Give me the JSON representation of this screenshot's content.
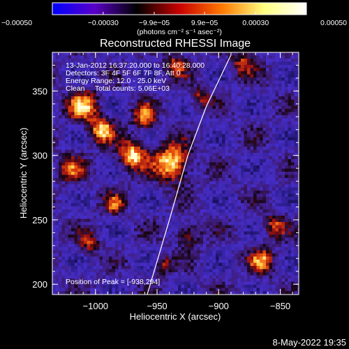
{
  "chart_data": {
    "type": "heatmap",
    "title": "Reconstructed RHESSI Image",
    "xlabel": "Heliocentric X (arcsec)",
    "ylabel": "Heliocentric Y (arcsec)",
    "xlim": [
      -1035,
      -835
    ],
    "ylim": [
      192,
      380
    ],
    "x_ticks": [
      -1000,
      -950,
      -900,
      -850
    ],
    "x_tick_labels": [
      "−1000",
      "−950",
      "−900",
      "−850"
    ],
    "y_ticks": [
      200,
      250,
      300,
      350
    ],
    "y_tick_labels": [
      "200",
      "250",
      "300",
      "350"
    ],
    "colorbar": {
      "range": [
        -0.0005,
        0.0005
      ],
      "ticks": [
        -0.0005,
        -0.0003,
        -9.9e-05,
        9.9e-05,
        0.0003,
        0.0005
      ],
      "tick_labels": [
        "−0.00050",
        "−0.00030",
        "−9.9e−05",
        "9.9e−05",
        "0.00030",
        "0.00050"
      ],
      "units_label": "(photons cm⁻² s⁻¹ asec⁻²)",
      "colors": [
        "#0000ff",
        "#5a00c8",
        "#000000",
        "#c80000",
        "#ff7800",
        "#ffff80",
        "#ffffff"
      ]
    },
    "annotations": {
      "time_range": "13-Jan-2012 16:37:20.000 to 16:40:28.000",
      "detectors": "Detectors: 3F 4F 5F 6F 7F 8F, Att 0",
      "energy": "Energy Range: 12.0 - 25.0 keV",
      "clean": "Clean     Total counts: 5.06E+03",
      "peak": "Position of Peak = [-938,294]"
    },
    "peak": {
      "x": -938,
      "y": 294
    },
    "limb_curve": [
      [
        -958,
        192
      ],
      [
        -940,
        250
      ],
      [
        -925,
        300
      ],
      [
        -910,
        338
      ],
      [
        -898,
        362
      ],
      [
        -890,
        378
      ]
    ],
    "grid": false
  },
  "footer": {
    "timestamp": "8-May-2022 19:35"
  }
}
